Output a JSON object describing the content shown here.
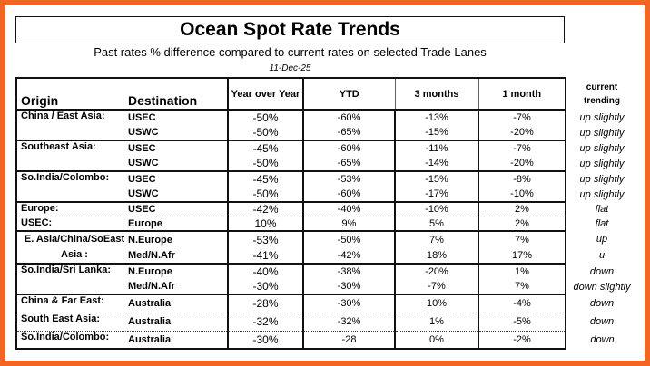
{
  "title": "Ocean Spot Rate Trends",
  "subtitle": "Past rates % difference compared to current rates  on selected Trade Lanes",
  "date": "11-Dec-25",
  "colors": {
    "frame": "#f26522",
    "header_divider": "#2f6db5"
  },
  "headers": {
    "origin": "Origin",
    "destination": "Destination",
    "yoy": "Year over Year",
    "ytd": "YTD",
    "m3": "3 months",
    "m1": "1 month",
    "trend_line1": "current",
    "trend_line2": "trending"
  },
  "groups": [
    {
      "origin": "China / East Asia:",
      "rows": [
        {
          "dest": "USEC",
          "yoy": "-50%",
          "ytd": "-60%",
          "m3": "-13%",
          "m1": "-7%",
          "trend": "up slightly"
        },
        {
          "dest": "USWC",
          "yoy": "-50%",
          "ytd": "-65%",
          "m3": "-15%",
          "m1": "-20%",
          "trend": "up slightly"
        }
      ]
    },
    {
      "origin": "Southeast Asia:",
      "rows": [
        {
          "dest": "USEC",
          "yoy": "-45%",
          "ytd": "-60%",
          "m3": "-11%",
          "m1": "-7%",
          "trend": "up slightly"
        },
        {
          "dest": "USWC",
          "yoy": "-50%",
          "ytd": "-65%",
          "m3": "-14%",
          "m1": "-20%",
          "trend": "up slightly"
        }
      ]
    },
    {
      "origin": "So.India/Colombo:",
      "rows": [
        {
          "dest": "USEC",
          "yoy": "-45%",
          "ytd": "-53%",
          "m3": "-15%",
          "m1": "-8%",
          "trend": "up slightly"
        },
        {
          "dest": "USWC",
          "yoy": "-50%",
          "ytd": "-60%",
          "m3": "-17%",
          "m1": "-10%",
          "trend": "up slightly"
        }
      ]
    },
    {
      "origin": "Europe:",
      "rows": [
        {
          "dest": "USEC",
          "yoy": "-42%",
          "ytd": "-40%",
          "m3": "-10%",
          "m1": "2%",
          "trend": "flat"
        }
      ]
    },
    {
      "origin": "USEC:",
      "dotted": true,
      "rows": [
        {
          "dest": "Europe",
          "yoy": "10%",
          "ytd": "9%",
          "m3": "5%",
          "m1": "2%",
          "trend": "flat"
        }
      ]
    },
    {
      "origin": "E. Asia/China/SoEast Asia :",
      "center": true,
      "rows": [
        {
          "dest": "N.Europe",
          "yoy": "-53%",
          "ytd": "-50%",
          "m3": "7%",
          "m1": "7%",
          "trend": "up"
        },
        {
          "dest": "Med/N.Afr",
          "yoy": "-41%",
          "ytd": "-42%",
          "m3": "18%",
          "m1": "17%",
          "trend": "u"
        }
      ]
    },
    {
      "origin": "So.India/Sri Lanka:",
      "rows": [
        {
          "dest": "N.Europe",
          "yoy": "-40%",
          "ytd": "-38%",
          "m3": "-20%",
          "m1": "1%",
          "trend": "down"
        },
        {
          "dest": "Med/N.Afr",
          "yoy": "-30%",
          "ytd": "-30%",
          "m3": "-7%",
          "m1": "7%",
          "trend": "down slightly"
        }
      ]
    },
    {
      "origin": "China & Far East:",
      "tall": true,
      "rows": [
        {
          "dest": "Australia",
          "yoy": "-28%",
          "ytd": "-30%",
          "m3": "10%",
          "m1": "-4%",
          "trend": "down"
        }
      ]
    },
    {
      "origin": "South East Asia:",
      "tall": true,
      "dotted": true,
      "rows": [
        {
          "dest": "Australia",
          "yoy": "-32%",
          "ytd": "-32%",
          "m3": "1%",
          "m1": "-5%",
          "trend": "down"
        }
      ]
    },
    {
      "origin": "So.India/Colombo:",
      "tall": true,
      "dotted": true,
      "rows": [
        {
          "dest": "Australia",
          "yoy": "-30%",
          "ytd": "-28",
          "m3": "0%",
          "m1": "-2%",
          "trend": "down"
        }
      ]
    }
  ]
}
